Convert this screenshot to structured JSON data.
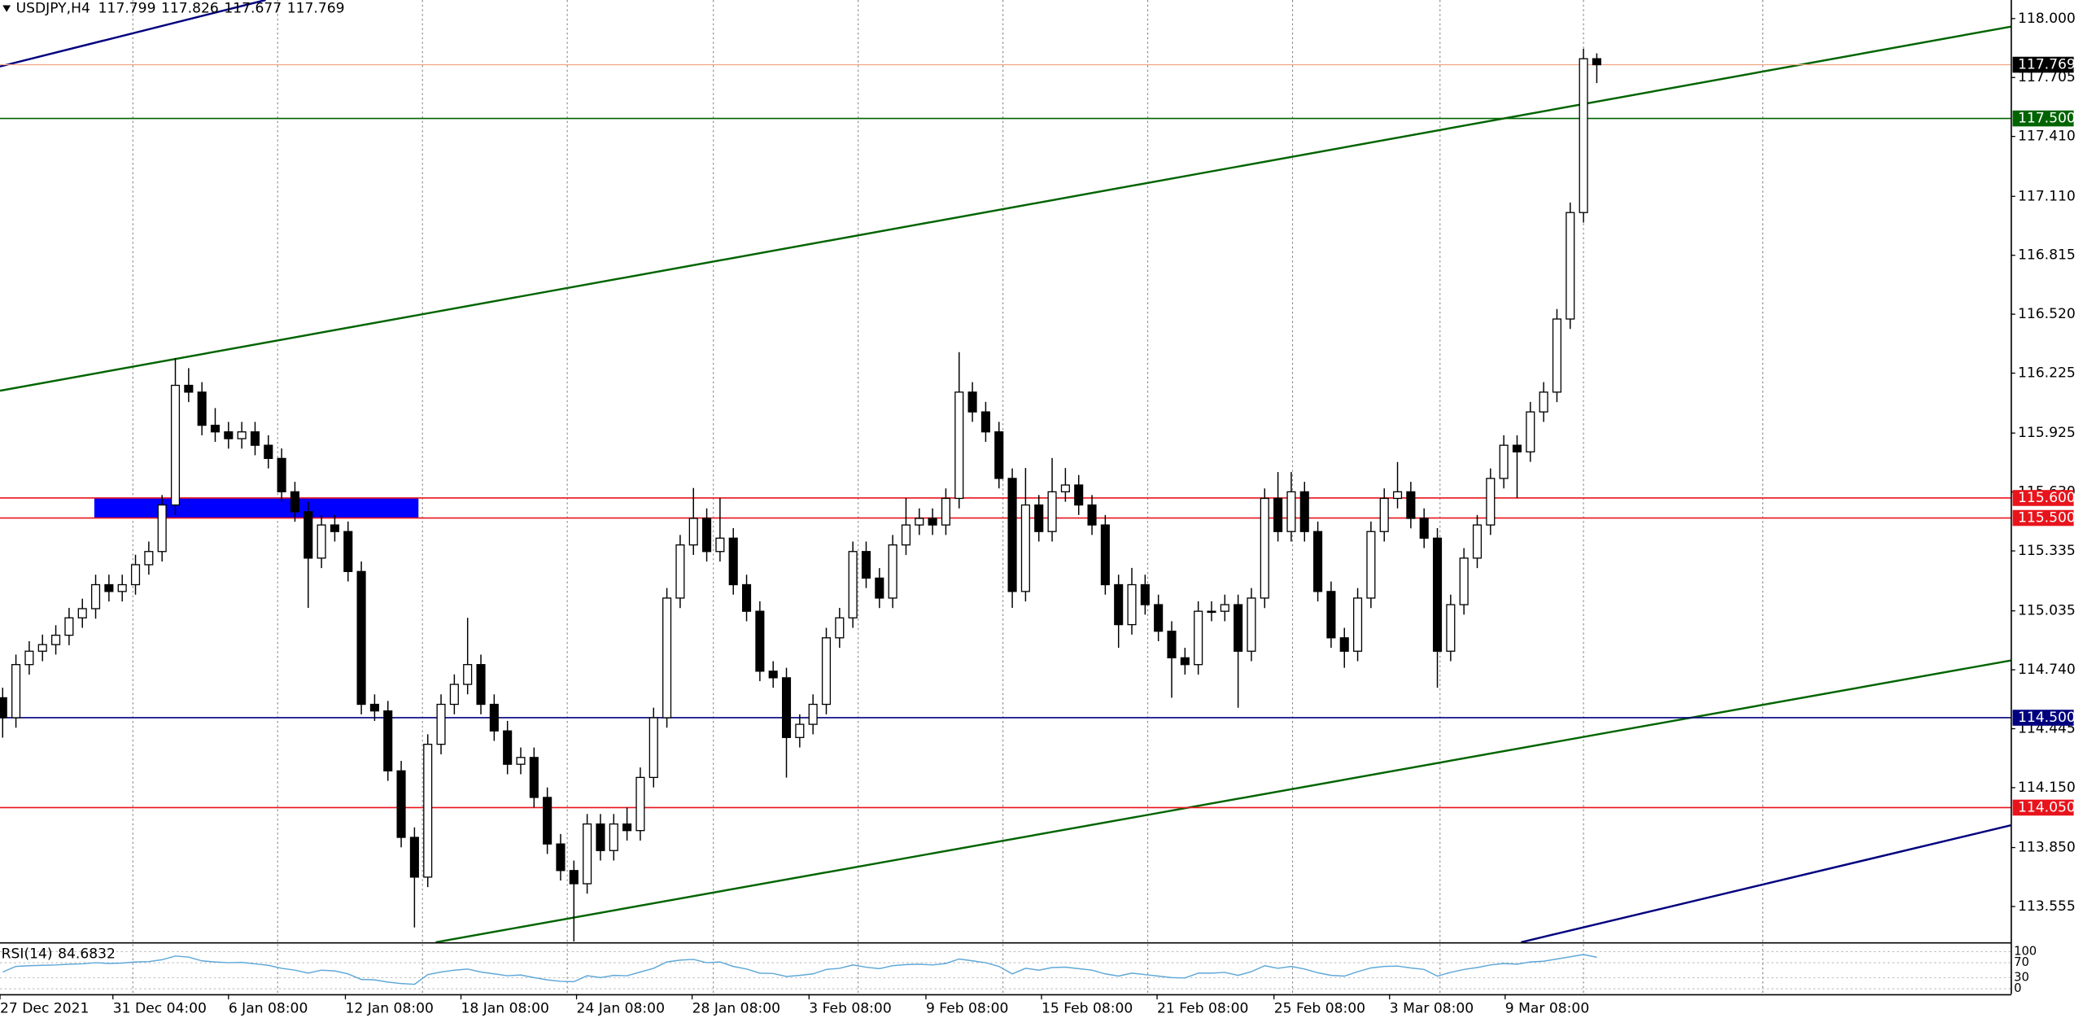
{
  "chart_data": {
    "type": "candlestick",
    "symbol": "USDJPY,H4",
    "up_color": "#ffffff",
    "down_color": "#000000",
    "edge_color": "#000000",
    "xlim": [
      -0.2,
      151.2
    ],
    "ylim": [
      113.376,
      118.093
    ],
    "yticks": [
      {
        "value": 118,
        "label": "118.000"
      },
      117.705,
      {
        "value": 117.41,
        "label": "117.410"
      },
      {
        "value": 117.11,
        "label": "117.110"
      },
      116.815,
      {
        "value": 116.52,
        "label": "116.520"
      },
      116.225,
      115.925,
      {
        "value": 115.63,
        "label": "115.630"
      },
      115.335,
      115.035,
      {
        "value": 114.74,
        "label": "114.740"
      },
      114.445,
      {
        "value": 114.15,
        "label": "114.150"
      },
      {
        "value": 113.85,
        "label": "113.850"
      },
      113.555
    ],
    "xticks": [
      {
        "value": -0.2,
        "label": "27 Dec 2021"
      },
      {
        "value": 8.3,
        "label": "31 Dec 04:00"
      },
      {
        "value": 17,
        "label": "6 Jan 08:00"
      },
      {
        "value": 25.8,
        "label": "12 Jan 08:00"
      },
      {
        "value": 34.5,
        "label": "18 Jan 08:00"
      },
      {
        "value": 43.2,
        "label": "24 Jan 08:00"
      },
      {
        "value": 51.9,
        "label": "28 Jan 08:00"
      },
      {
        "value": 60.7,
        "label": "3 Feb 08:00"
      },
      {
        "value": 69.5,
        "label": "9 Feb 08:00"
      },
      {
        "value": 78.2,
        "label": "15 Feb 08:00"
      },
      {
        "value": 86.9,
        "label": "21 Feb 08:00"
      },
      {
        "value": 95.7,
        "label": "25 Feb 08:00"
      },
      {
        "value": 104.4,
        "label": "3 Mar 08:00"
      },
      {
        "value": 113.1,
        "label": "9 Mar 08:00"
      }
    ],
    "xgrid": [
      9.8,
      20.7,
      31.6,
      42.5,
      53.5,
      64.4,
      75.3,
      86.2,
      97.1,
      108.2,
      119,
      132.5
    ],
    "ohlc": [
      [
        114.6,
        114.65,
        114.4,
        114.5
      ],
      [
        114.5,
        114.816,
        114.45,
        114.766
      ],
      [
        114.766,
        114.883,
        114.716,
        114.833
      ],
      [
        114.833,
        114.916,
        114.783,
        114.866
      ],
      [
        114.866,
        114.963,
        114.816,
        114.913
      ],
      [
        114.913,
        115.05,
        114.863,
        115
      ],
      [
        115,
        115.096,
        114.95,
        115.046
      ],
      [
        115.046,
        115.216,
        114.996,
        115.166
      ],
      [
        115.166,
        115.216,
        115.082,
        115.132
      ],
      [
        115.132,
        115.216,
        115.082,
        115.166
      ],
      [
        115.166,
        115.316,
        115.116,
        115.266
      ],
      [
        115.266,
        115.382,
        115.216,
        115.332
      ],
      [
        115.332,
        115.615,
        115.282,
        115.565
      ],
      [
        115.565,
        116.3,
        115.515,
        116.164
      ],
      [
        116.164,
        116.25,
        116.08,
        116.13
      ],
      [
        116.13,
        116.18,
        115.914,
        115.964
      ],
      [
        115.964,
        116.05,
        115.881,
        115.931
      ],
      [
        115.931,
        115.981,
        115.847,
        115.897
      ],
      [
        115.897,
        115.981,
        115.847,
        115.931
      ],
      [
        115.931,
        115.981,
        115.814,
        115.864
      ],
      [
        115.864,
        115.914,
        115.748,
        115.798
      ],
      [
        115.798,
        115.848,
        115.581,
        115.631
      ],
      [
        115.631,
        115.681,
        115.481,
        115.531
      ],
      [
        115.531,
        115.581,
        115.05,
        115.299
      ],
      [
        115.299,
        115.515,
        115.249,
        115.465
      ],
      [
        115.465,
        115.515,
        115.382,
        115.432
      ],
      [
        115.432,
        115.482,
        115.182,
        115.232
      ],
      [
        115.232,
        115.282,
        114.517,
        114.567
      ],
      [
        114.567,
        114.617,
        114.484,
        114.534
      ],
      [
        114.534,
        114.584,
        114.184,
        114.234
      ],
      [
        114.234,
        114.284,
        113.851,
        113.901
      ],
      [
        113.901,
        113.951,
        113.45,
        113.702
      ],
      [
        113.702,
        114.417,
        113.652,
        114.367
      ],
      [
        114.367,
        114.617,
        114.317,
        114.567
      ],
      [
        114.567,
        114.717,
        114.517,
        114.667
      ],
      [
        114.667,
        115,
        114.617,
        114.766
      ],
      [
        114.766,
        114.816,
        114.517,
        114.567
      ],
      [
        114.567,
        114.617,
        114.384,
        114.434
      ],
      [
        114.434,
        114.484,
        114.217,
        114.267
      ],
      [
        114.267,
        114.351,
        114.217,
        114.301
      ],
      [
        114.301,
        114.351,
        114.051,
        114.101
      ],
      [
        114.101,
        114.151,
        113.818,
        113.868
      ],
      [
        113.868,
        113.918,
        113.685,
        113.735
      ],
      [
        113.735,
        113.785,
        113.38,
        113.669
      ],
      [
        113.669,
        114.018,
        113.619,
        113.968
      ],
      [
        113.968,
        114.018,
        113.785,
        113.835
      ],
      [
        113.835,
        114.018,
        113.785,
        113.968
      ],
      [
        113.968,
        114.05,
        113.885,
        113.935
      ],
      [
        113.935,
        114.251,
        113.885,
        114.201
      ],
      [
        114.201,
        114.55,
        114.151,
        114.5
      ],
      [
        114.5,
        115.149,
        114.45,
        115.099
      ],
      [
        115.099,
        115.415,
        115.049,
        115.365
      ],
      [
        115.365,
        115.65,
        115.315,
        115.498
      ],
      [
        115.498,
        115.548,
        115.282,
        115.332
      ],
      [
        115.332,
        115.6,
        115.282,
        115.399
      ],
      [
        115.399,
        115.449,
        115.116,
        115.166
      ],
      [
        115.166,
        115.216,
        114.983,
        115.033
      ],
      [
        115.033,
        115.083,
        114.683,
        114.733
      ],
      [
        114.733,
        114.783,
        114.65,
        114.7
      ],
      [
        114.7,
        114.75,
        114.2,
        114.401
      ],
      [
        114.401,
        114.517,
        114.351,
        114.467
      ],
      [
        114.467,
        114.617,
        114.417,
        114.567
      ],
      [
        114.567,
        114.95,
        114.517,
        114.9
      ],
      [
        114.9,
        115.05,
        114.85,
        115
      ],
      [
        115,
        115.382,
        114.95,
        115.332
      ],
      [
        115.332,
        115.382,
        115.149,
        115.199
      ],
      [
        115.199,
        115.249,
        115.049,
        115.099
      ],
      [
        115.099,
        115.415,
        115.049,
        115.365
      ],
      [
        115.365,
        115.6,
        115.315,
        115.465
      ],
      [
        115.465,
        115.548,
        115.415,
        115.498
      ],
      [
        115.498,
        115.548,
        115.415,
        115.465
      ],
      [
        115.465,
        115.648,
        115.415,
        115.598
      ],
      [
        115.598,
        116.33,
        115.548,
        116.13
      ],
      [
        116.13,
        116.18,
        115.981,
        116.031
      ],
      [
        116.031,
        116.081,
        115.881,
        115.931
      ],
      [
        115.931,
        115.981,
        115.648,
        115.698
      ],
      [
        115.698,
        115.748,
        115.05,
        115.132
      ],
      [
        115.132,
        115.75,
        115.082,
        115.565
      ],
      [
        115.565,
        115.615,
        115.382,
        115.432
      ],
      [
        115.432,
        115.8,
        115.382,
        115.631
      ],
      [
        115.631,
        115.75,
        115.581,
        115.665
      ],
      [
        115.665,
        115.715,
        115.515,
        115.565
      ],
      [
        115.565,
        115.615,
        115.415,
        115.465
      ],
      [
        115.465,
        115.515,
        115.116,
        115.166
      ],
      [
        115.166,
        115.216,
        114.85,
        114.966
      ],
      [
        114.966,
        115.25,
        114.916,
        115.166
      ],
      [
        115.166,
        115.216,
        115.016,
        115.066
      ],
      [
        115.066,
        115.116,
        114.883,
        114.933
      ],
      [
        114.933,
        114.983,
        114.6,
        114.8
      ],
      [
        114.8,
        114.85,
        114.716,
        114.766
      ],
      [
        114.766,
        115.083,
        114.716,
        115.033
      ],
      [
        115.033,
        115.083,
        114.983,
        115.033
      ],
      [
        115.033,
        115.116,
        114.983,
        115.066
      ],
      [
        115.066,
        115.116,
        114.55,
        114.833
      ],
      [
        114.833,
        115.149,
        114.783,
        115.099
      ],
      [
        115.099,
        115.648,
        115.049,
        115.598
      ],
      [
        115.598,
        115.73,
        115.382,
        115.432
      ],
      [
        115.432,
        115.73,
        115.382,
        115.631
      ],
      [
        115.631,
        115.681,
        115.382,
        115.432
      ],
      [
        115.432,
        115.482,
        115.082,
        115.132
      ],
      [
        115.132,
        115.182,
        114.85,
        114.9
      ],
      [
        114.9,
        114.95,
        114.75,
        114.833
      ],
      [
        114.833,
        115.149,
        114.783,
        115.099
      ],
      [
        115.099,
        115.482,
        115.049,
        115.432
      ],
      [
        115.432,
        115.648,
        115.382,
        115.598
      ],
      [
        115.598,
        115.78,
        115.548,
        115.631
      ],
      [
        115.631,
        115.681,
        115.448,
        115.498
      ],
      [
        115.498,
        115.548,
        115.349,
        115.399
      ],
      [
        115.399,
        115.449,
        114.65,
        114.833
      ],
      [
        114.833,
        115.116,
        114.783,
        115.066
      ],
      [
        115.066,
        115.349,
        115.016,
        115.299
      ],
      [
        115.299,
        115.515,
        115.249,
        115.465
      ],
      [
        115.465,
        115.748,
        115.415,
        115.698
      ],
      [
        115.698,
        115.914,
        115.648,
        115.864
      ],
      [
        115.864,
        115.914,
        115.6,
        115.831
      ],
      [
        115.831,
        116.081,
        115.781,
        116.031
      ],
      [
        116.031,
        116.18,
        115.981,
        116.13
      ],
      [
        116.13,
        116.546,
        116.08,
        116.496
      ],
      [
        116.496,
        117.079,
        116.446,
        117.029
      ],
      [
        117.029,
        117.849,
        116.979,
        117.799
      ],
      [
        117.799,
        117.826,
        117.677,
        117.769
      ]
    ],
    "current_price_color": "#f4a582",
    "levels": [
      {
        "value": 117.5,
        "label": "117.500",
        "color": "#006400"
      },
      {
        "value": 115.6,
        "label": "115.600",
        "color": "#e8141c"
      },
      {
        "value": 115.5,
        "label": "115.500",
        "color": "#e8141c"
      },
      {
        "value": 114.5,
        "label": "114.500",
        "color": "#00007f"
      },
      {
        "value": 114.05,
        "label": "114.050",
        "color": "#e8141c"
      }
    ],
    "trendlines": [
      {
        "x": [
          -0.2,
          151.2
        ],
        "y": [
          116.137,
          117.96
        ],
        "color": "#006400"
      },
      {
        "x": [
          32.6,
          151.2
        ],
        "y": [
          113.376,
          114.787
        ],
        "color": "#006400"
      },
      {
        "x": [
          -0.2,
          19.8
        ],
        "y": [
          117.76,
          118.093
        ],
        "color": "#00007f"
      },
      {
        "x": [
          114.3,
          151.2
        ],
        "y": [
          113.376,
          113.962
        ],
        "color": "#00007f"
      }
    ],
    "zones": [
      {
        "x": [
          6.9,
          31.3
        ],
        "y": [
          115.5,
          115.6
        ],
        "color": "#0000ff"
      }
    ],
    "rsi": {
      "name": "RSI(14)",
      "color": "#5fa8d8",
      "ylim": [
        0,
        100
      ],
      "yticks": [
        100,
        70,
        30,
        0
      ],
      "values": [
        45,
        60,
        62,
        63,
        64,
        66,
        67,
        70,
        68,
        69,
        72,
        73,
        78,
        88,
        85,
        75,
        72,
        70,
        71,
        67,
        63,
        55,
        50,
        42,
        50,
        48,
        40,
        25,
        24,
        18,
        14,
        12,
        38,
        45,
        50,
        53,
        45,
        40,
        35,
        37,
        30,
        24,
        20,
        19,
        35,
        30,
        36,
        35,
        45,
        55,
        72,
        77,
        79,
        70,
        72,
        60,
        53,
        42,
        41,
        33,
        36,
        40,
        52,
        55,
        64,
        58,
        54,
        62,
        65,
        66,
        64,
        68,
        80,
        75,
        70,
        60,
        40,
        55,
        50,
        57,
        58,
        54,
        50,
        40,
        34,
        42,
        38,
        34,
        30,
        29,
        42,
        42,
        44,
        36,
        46,
        62,
        55,
        60,
        53,
        43,
        36,
        34,
        46,
        56,
        60,
        61,
        56,
        52,
        34,
        44,
        52,
        57,
        64,
        68,
        66,
        72,
        74,
        80,
        86,
        92,
        84.6832
      ]
    }
  }
}
